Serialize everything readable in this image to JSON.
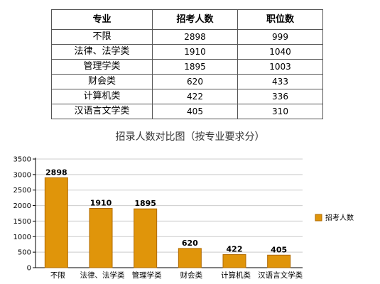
{
  "table": {
    "headers": [
      "专业",
      "招考人数",
      "职位数"
    ],
    "rows": [
      [
        "不限",
        "2898",
        "999"
      ],
      [
        "法律、法学类",
        "1910",
        "1040"
      ],
      [
        "管理学类",
        "1895",
        "1003"
      ],
      [
        "财会类",
        "620",
        "433"
      ],
      [
        "计算机类",
        "422",
        "336"
      ],
      [
        "汉语言文学类",
        "405",
        "310"
      ]
    ]
  },
  "chart_data": {
    "type": "bar",
    "title": "招录人数对比图（按专业要求分）",
    "categories": [
      "不限",
      "法律、法学类",
      "管理学类",
      "财会类",
      "计算机类",
      "汉语言文学类"
    ],
    "series": [
      {
        "name": "招考人数",
        "values": [
          2898,
          1910,
          1895,
          620,
          422,
          405
        ],
        "color": "#E0950A"
      }
    ],
    "yticks": [
      0,
      500,
      1000,
      1500,
      2000,
      2500,
      3000,
      3500
    ],
    "ylim": [
      0,
      3500
    ],
    "grid": true,
    "legend": "right",
    "colors": {
      "bar": "#E0950A",
      "bar_stroke": "#B06A00",
      "grid": "#CCCCCC"
    }
  }
}
